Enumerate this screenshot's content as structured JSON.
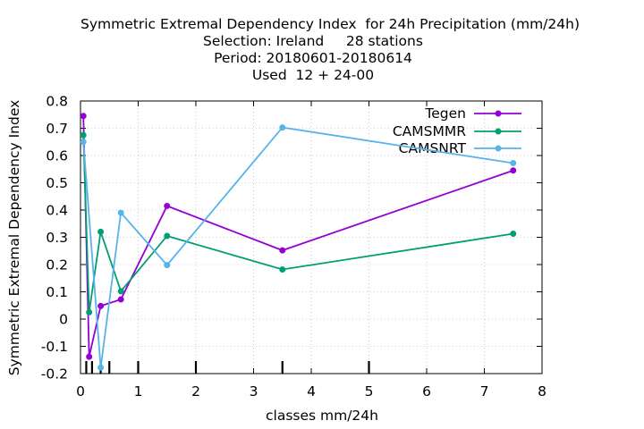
{
  "chart_data": {
    "type": "line",
    "title_lines": [
      "Symmetric Extremal Dependency Index  for 24h Precipitation (mm/24h)",
      "Selection: Ireland     28 stations",
      "Period: 20180601-20180614",
      "Used  12 + 24-00"
    ],
    "xlabel": "classes mm/24h",
    "ylabel": "Symmetric Extremal Dependency Index",
    "xlim": [
      0,
      8
    ],
    "ylim": [
      -0.2,
      0.8
    ],
    "xticks": [
      0,
      1,
      2,
      3,
      4,
      5,
      6,
      7,
      8
    ],
    "yticks": [
      -0.2,
      -0.1,
      0,
      0.1,
      0.2,
      0.3,
      0.4,
      0.5,
      0.6,
      0.7,
      0.8
    ],
    "ytick_labels": [
      "-0.2",
      "-0.1",
      "0",
      "0.1",
      "0.2",
      "0.3",
      "0.4",
      "0.5",
      "0.6",
      "0.7",
      "0.8"
    ],
    "grid": true,
    "legend_position": "top-right",
    "class_marks": [
      0.1,
      0.2,
      0.35,
      0.5,
      1.0,
      2.0,
      3.5,
      5.0
    ],
    "series": [
      {
        "name": "Tegen",
        "color": "#9400d3",
        "x": [
          0.05,
          0.15,
          0.35,
          0.7,
          1.5,
          3.5,
          7.5
        ],
        "y": [
          0.745,
          -0.138,
          0.048,
          0.072,
          0.415,
          0.252,
          0.545
        ]
      },
      {
        "name": "CAMSMMR",
        "color": "#009e73",
        "x": [
          0.05,
          0.15,
          0.35,
          0.7,
          1.5,
          3.5,
          7.5
        ],
        "y": [
          0.675,
          0.025,
          0.32,
          0.102,
          0.305,
          0.182,
          0.313
        ]
      },
      {
        "name": "CAMSNRT",
        "color": "#56b4e9",
        "x": [
          0.05,
          0.35,
          0.7,
          1.5,
          3.5,
          7.5
        ],
        "y": [
          0.65,
          -0.178,
          0.39,
          0.198,
          0.703,
          0.572
        ]
      }
    ]
  }
}
